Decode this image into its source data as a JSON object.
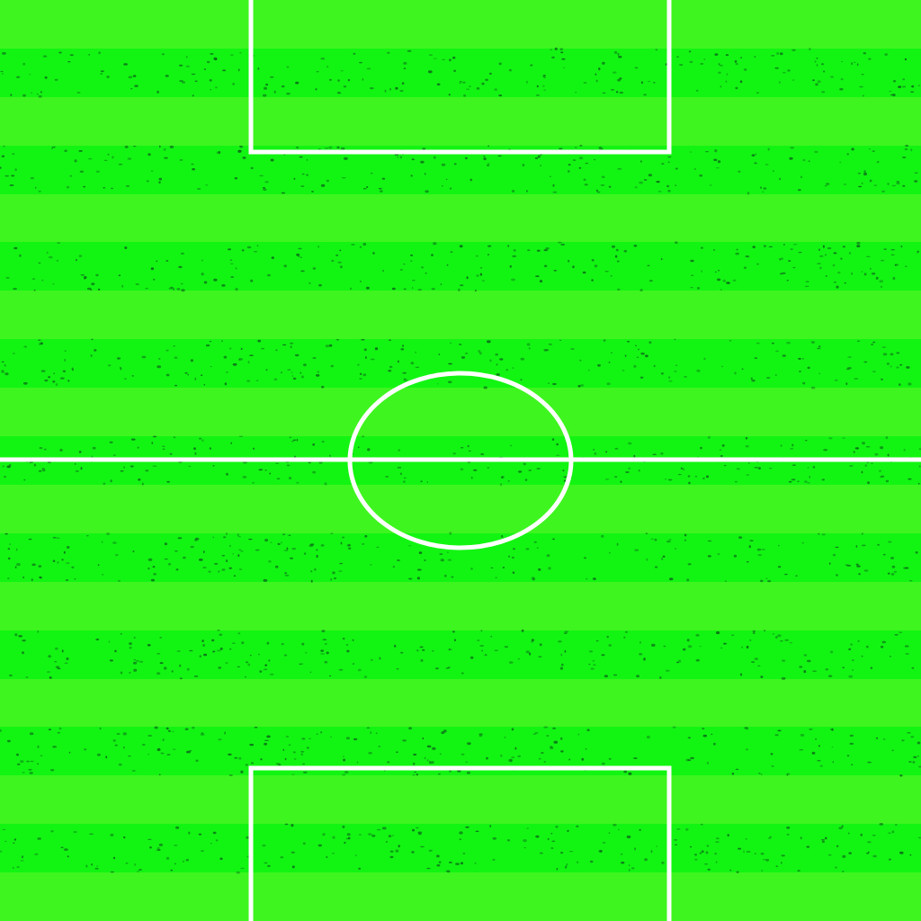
{
  "pitch": {
    "colors": {
      "stripe_light": "#3ef51f",
      "stripe_dark": "#12f512",
      "speckle": "#0a5a1a",
      "line": "#ffffff"
    },
    "stripe_count": 19,
    "markings": {
      "halfway_line": true,
      "center_circle": true,
      "top_penalty_box": true,
      "bottom_penalty_box": true
    }
  }
}
